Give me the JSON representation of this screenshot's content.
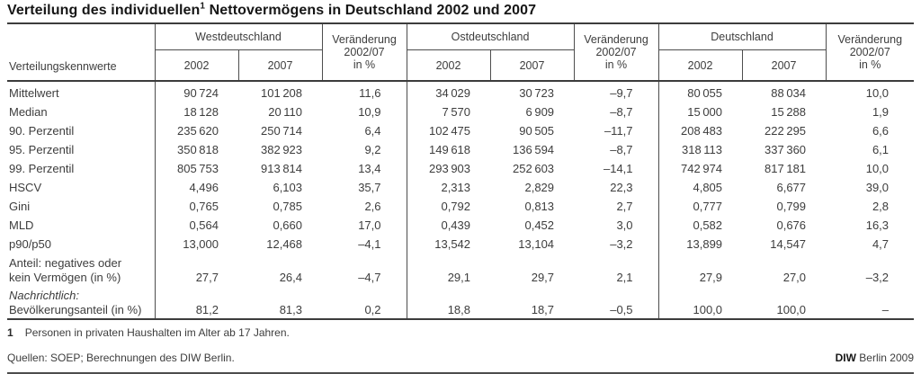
{
  "title": {
    "main": "Verteilung des individuellen",
    "sup": "1",
    "rest": " Nettovermögens in Deutschland 2002 und 2007"
  },
  "table": {
    "row_header": "Verteilungskennwerte",
    "groups": {
      "west": "Westdeutschland",
      "east": "Ostdeutschland",
      "germany": "Deutschland"
    },
    "change_header": {
      "line1": "Veränderung",
      "line2": "2002/07",
      "line3": "in %"
    },
    "years": {
      "y2002": "2002",
      "y2007": "2007"
    },
    "rows": [
      {
        "line1": "Mittelwert",
        "line2": null,
        "line1_italic": false,
        "values": [
          "90 724",
          "101 208",
          "11,6",
          "34 029",
          "30 723",
          "–9,7",
          "80 055",
          "88 034",
          "10,0"
        ]
      },
      {
        "line1": "Median",
        "line2": null,
        "line1_italic": false,
        "values": [
          "18 128",
          "20 110",
          "10,9",
          "7 570",
          "6 909",
          "–8,7",
          "15 000",
          "15 288",
          "1,9"
        ]
      },
      {
        "line1": "90. Perzentil",
        "line2": null,
        "line1_italic": false,
        "values": [
          "235 620",
          "250 714",
          "6,4",
          "102 475",
          "90 505",
          "–11,7",
          "208 483",
          "222 295",
          "6,6"
        ]
      },
      {
        "line1": "95. Perzentil",
        "line2": null,
        "line1_italic": false,
        "values": [
          "350 818",
          "382 923",
          "9,2",
          "149 618",
          "136 594",
          "–8,7",
          "318 113",
          "337 360",
          "6,1"
        ]
      },
      {
        "line1": "99. Perzentil",
        "line2": null,
        "line1_italic": false,
        "values": [
          "805 753",
          "913 814",
          "13,4",
          "293 903",
          "252 603",
          "–14,1",
          "742 974",
          "817 181",
          "10,0"
        ]
      },
      {
        "line1": "HSCV",
        "line2": null,
        "line1_italic": false,
        "values": [
          "4,496",
          "6,103",
          "35,7",
          "2,313",
          "2,829",
          "22,3",
          "4,805",
          "6,677",
          "39,0"
        ]
      },
      {
        "line1": "Gini",
        "line2": null,
        "line1_italic": false,
        "values": [
          "0,765",
          "0,785",
          "2,6",
          "0,792",
          "0,813",
          "2,7",
          "0,777",
          "0,799",
          "2,8"
        ]
      },
      {
        "line1": "MLD",
        "line2": null,
        "line1_italic": false,
        "values": [
          "0,564",
          "0,660",
          "17,0",
          "0,439",
          "0,452",
          "3,0",
          "0,582",
          "0,676",
          "16,3"
        ]
      },
      {
        "line1": "p90/p50",
        "line2": null,
        "line1_italic": false,
        "values": [
          "13,000",
          "12,468",
          "–4,1",
          "13,542",
          "13,104",
          "–3,2",
          "13,899",
          "14,547",
          "4,7"
        ]
      },
      {
        "line1": "Anteil: negatives oder",
        "line2": "kein Vermögen (in %)",
        "line1_italic": false,
        "values": [
          "27,7",
          "26,4",
          "–4,7",
          "29,1",
          "29,7",
          "2,1",
          "27,9",
          "27,0",
          "–3,2"
        ]
      },
      {
        "line1": "Nachrichtlich:",
        "line2": "Bevölkerungsanteil (in %)",
        "line1_italic": true,
        "values": [
          "81,2",
          "81,3",
          "0,2",
          "18,8",
          "18,7",
          "–0,5",
          "100,0",
          "100,0",
          "–"
        ]
      }
    ]
  },
  "footnote": {
    "marker": "1",
    "text": "Personen in privaten Haushalten im Alter ab 17 Jahren."
  },
  "sources": {
    "left": "Quellen: SOEP; Berechnungen des DIW Berlin.",
    "right_bold": "DIW",
    "right_rest": " Berlin 2009"
  },
  "colors": {
    "rule": "#4d4d4d",
    "rule_thick": "#3c3c3c",
    "text": "#3d3d3d",
    "title": "#161616"
  }
}
